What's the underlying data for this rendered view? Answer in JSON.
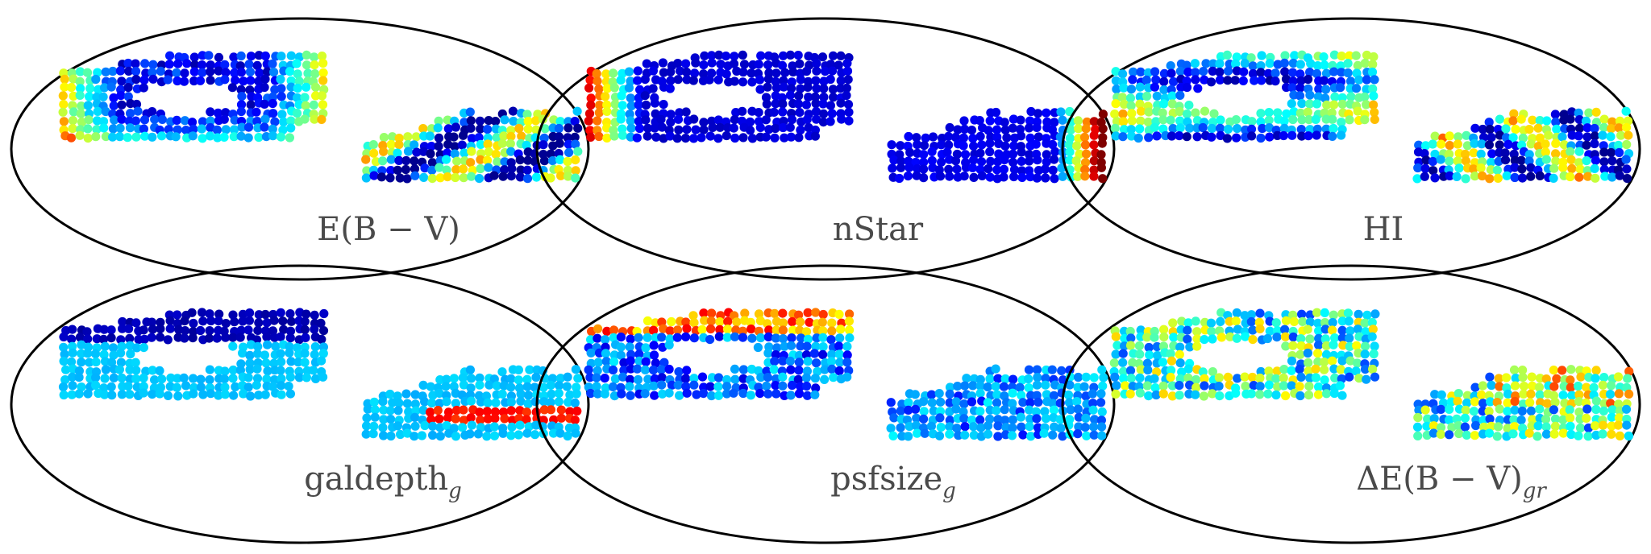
{
  "figure": {
    "panels": [
      {
        "label": "E(B − V)",
        "subscript": "",
        "pattern": "ebv"
      },
      {
        "label": "nStar",
        "subscript": "",
        "pattern": "nstar"
      },
      {
        "label": "HI",
        "subscript": "",
        "pattern": "hi"
      },
      {
        "label": "galdepth",
        "subscript": "g",
        "pattern": "galdepth"
      },
      {
        "label": "psfsize",
        "subscript": "g",
        "pattern": "psfsize"
      },
      {
        "label": "ΔE(B − V)",
        "subscript": "gr",
        "pattern": "debv"
      }
    ],
    "colormap": "jet",
    "colormap_stops": [
      "#00008f",
      "#0000ff",
      "#00a0ff",
      "#00ffff",
      "#80ff80",
      "#ffff00",
      "#ff8000",
      "#ff0000",
      "#800000"
    ],
    "outline_color": "#000000",
    "background_color": "#ffffff"
  }
}
